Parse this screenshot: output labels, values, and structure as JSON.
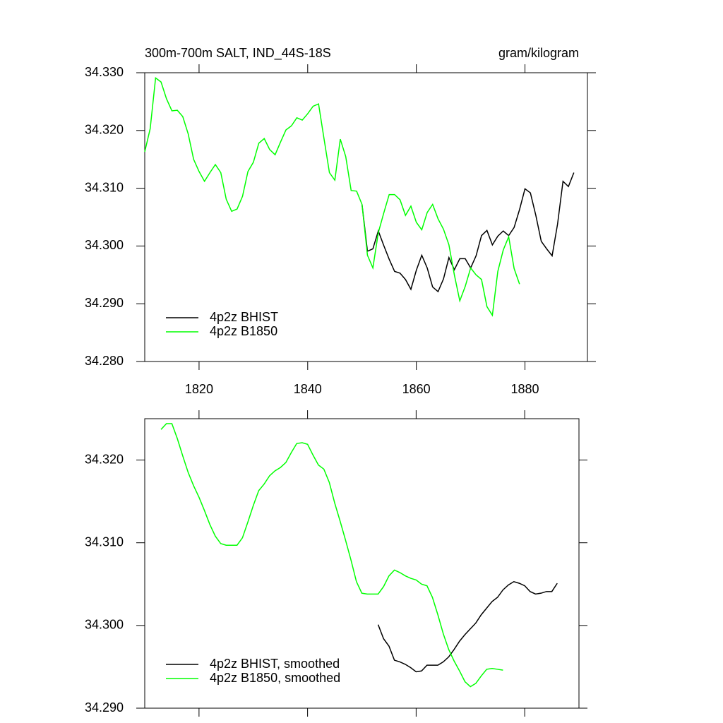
{
  "chart_data": [
    {
      "type": "line",
      "title": "300m-700m SALT, IND_44S-18S",
      "units": "gram/kilogram",
      "x": [
        1810,
        1811,
        1812,
        1813,
        1814,
        1815,
        1816,
        1817,
        1818,
        1819,
        1820,
        1821,
        1822,
        1823,
        1824,
        1825,
        1826,
        1827,
        1828,
        1829,
        1830,
        1831,
        1832,
        1833,
        1834,
        1835,
        1836,
        1837,
        1838,
        1839,
        1840,
        1841,
        1842,
        1843,
        1844,
        1845,
        1846,
        1847,
        1848,
        1849,
        1850,
        1851,
        1852,
        1853,
        1854,
        1855,
        1856,
        1857,
        1858,
        1859,
        1860,
        1861,
        1862,
        1863,
        1864,
        1865,
        1866,
        1867,
        1868,
        1869,
        1870,
        1871,
        1872,
        1873,
        1874,
        1875,
        1876,
        1877,
        1878,
        1879,
        1880,
        1881,
        1882,
        1883,
        1884,
        1885,
        1886,
        1887,
        1888,
        1889
      ],
      "series": [
        {
          "name": "4p2z BHIST",
          "color": "#000000",
          "values": [
            null,
            null,
            null,
            null,
            null,
            null,
            null,
            null,
            null,
            null,
            null,
            null,
            null,
            null,
            null,
            null,
            null,
            null,
            null,
            null,
            null,
            null,
            null,
            null,
            null,
            null,
            null,
            null,
            null,
            null,
            null,
            null,
            null,
            null,
            null,
            null,
            null,
            null,
            null,
            null,
            34.3072,
            34.2991,
            34.2995,
            34.3026,
            34.3001,
            34.2977,
            34.2956,
            34.2953,
            34.2942,
            34.2925,
            34.2958,
            34.2984,
            34.2962,
            34.2929,
            34.2921,
            34.2943,
            34.298,
            34.2959,
            34.2978,
            34.2978,
            34.2962,
            34.2983,
            34.3018,
            34.3027,
            34.3002,
            34.3017,
            34.3026,
            34.3018,
            34.3032,
            34.3063,
            34.3099,
            34.3092,
            34.3053,
            34.3008,
            34.2995,
            34.2983,
            34.3038,
            34.3112,
            34.3103,
            34.3127
          ]
        },
        {
          "name": "4p2z B1850",
          "color": "#00ff00",
          "values": [
            34.3163,
            34.3203,
            34.3291,
            34.3284,
            34.3255,
            34.3234,
            34.3235,
            34.3224,
            34.3194,
            34.315,
            34.3129,
            34.3112,
            34.3127,
            34.3141,
            34.3127,
            34.3081,
            34.306,
            34.3064,
            34.3086,
            34.3129,
            34.3145,
            34.3178,
            34.3186,
            34.3167,
            34.3158,
            34.318,
            34.3201,
            34.3208,
            34.3222,
            34.3218,
            34.3229,
            34.3242,
            34.3246,
            34.3186,
            34.3127,
            34.3114,
            34.3185,
            34.3155,
            34.3096,
            34.3095,
            34.3072,
            34.2984,
            34.2962,
            34.3023,
            34.3057,
            34.3089,
            34.3089,
            34.308,
            34.3053,
            34.3069,
            34.3041,
            34.3028,
            34.3058,
            34.3072,
            34.3047,
            34.3029,
            34.3002,
            34.295,
            34.2905,
            34.293,
            34.2962,
            34.295,
            34.2942,
            34.2895,
            34.288,
            34.2956,
            34.2993,
            34.3016,
            34.2961,
            34.2934,
            null,
            null,
            null,
            null,
            null,
            null,
            null,
            null,
            null,
            null
          ]
        }
      ],
      "xlim": [
        1810,
        1891.5
      ],
      "xticks": [
        1820,
        1840,
        1860,
        1880
      ],
      "ylim": [
        34.28,
        34.33
      ],
      "yticks": [
        {
          "value": 34.28,
          "label": "34.280"
        },
        {
          "value": 34.29,
          "label": "34.290"
        },
        {
          "value": 34.3,
          "label": "34.300"
        },
        {
          "value": 34.31,
          "label": "34.310"
        },
        {
          "value": 34.32,
          "label": "34.320"
        },
        {
          "value": 34.33,
          "label": "34.330"
        }
      ],
      "legend": "lower left"
    },
    {
      "type": "line",
      "x": [
        1813,
        1814,
        1815,
        1816,
        1817,
        1818,
        1819,
        1820,
        1821,
        1822,
        1823,
        1824,
        1825,
        1826,
        1827,
        1828,
        1829,
        1830,
        1831,
        1832,
        1833,
        1834,
        1835,
        1836,
        1837,
        1838,
        1839,
        1840,
        1841,
        1842,
        1843,
        1844,
        1845,
        1846,
        1847,
        1848,
        1849,
        1850,
        1851,
        1852,
        1853,
        1854,
        1855,
        1856,
        1857,
        1858,
        1859,
        1860,
        1861,
        1862,
        1863,
        1864,
        1865,
        1866,
        1867,
        1868,
        1869,
        1870,
        1871,
        1872,
        1873,
        1874,
        1875,
        1876,
        1877,
        1878,
        1879,
        1880,
        1881,
        1882,
        1883,
        1884,
        1885,
        1886
      ],
      "series": [
        {
          "name": "4p2z BHIST, smoothed",
          "color": "#000000",
          "values": [
            null,
            null,
            null,
            null,
            null,
            null,
            null,
            null,
            null,
            null,
            null,
            null,
            null,
            null,
            null,
            null,
            null,
            null,
            null,
            null,
            null,
            null,
            null,
            null,
            null,
            null,
            null,
            null,
            null,
            null,
            null,
            null,
            null,
            null,
            null,
            null,
            null,
            null,
            null,
            null,
            34.3001,
            34.2984,
            34.2975,
            34.2958,
            34.2956,
            34.2953,
            34.2949,
            34.2944,
            34.2945,
            34.2952,
            34.2952,
            34.2952,
            34.2956,
            34.2962,
            34.2971,
            34.2981,
            34.2989,
            34.2996,
            34.3003,
            34.3013,
            34.3021,
            34.3029,
            34.3034,
            34.3043,
            34.3049,
            34.3053,
            34.3051,
            34.3048,
            34.3041,
            34.3038,
            34.3039,
            34.3041,
            34.3041,
            34.3051
          ]
        },
        {
          "name": "4p2z B1850, smoothed",
          "color": "#00ff00",
          "values": [
            34.3237,
            34.3244,
            34.3244,
            34.3226,
            34.3205,
            34.3185,
            34.3169,
            34.3155,
            34.3139,
            34.3122,
            34.3108,
            34.3099,
            34.3097,
            34.3097,
            34.3097,
            34.3106,
            34.3125,
            34.3145,
            34.3163,
            34.3171,
            34.3181,
            34.3187,
            34.3191,
            34.3197,
            34.3209,
            34.322,
            34.3221,
            34.3219,
            34.3206,
            34.3194,
            34.3189,
            34.3173,
            34.3148,
            34.3126,
            34.3103,
            34.3079,
            34.3053,
            34.3039,
            34.3038,
            34.3038,
            34.3038,
            34.3047,
            34.306,
            34.3067,
            34.3064,
            34.306,
            34.3057,
            34.3055,
            34.305,
            34.3048,
            34.3034,
            34.3013,
            34.299,
            34.2971,
            34.2957,
            34.2945,
            34.2932,
            34.2926,
            34.293,
            34.2939,
            34.2947,
            34.2948,
            34.2947,
            34.2946,
            null,
            null,
            null,
            null,
            null,
            null,
            null,
            null,
            null,
            null
          ]
        }
      ],
      "xlim": [
        1810,
        1890
      ],
      "xticks": [
        1820,
        1840,
        1860,
        1880
      ],
      "xtick_labels": false,
      "ylim": [
        34.29,
        34.325
      ],
      "yticks": [
        {
          "value": 34.29,
          "label": "34.290"
        },
        {
          "value": 34.3,
          "label": "34.300"
        },
        {
          "value": 34.31,
          "label": "34.310"
        },
        {
          "value": 34.32,
          "label": "34.320"
        }
      ],
      "legend": "lower left"
    }
  ]
}
